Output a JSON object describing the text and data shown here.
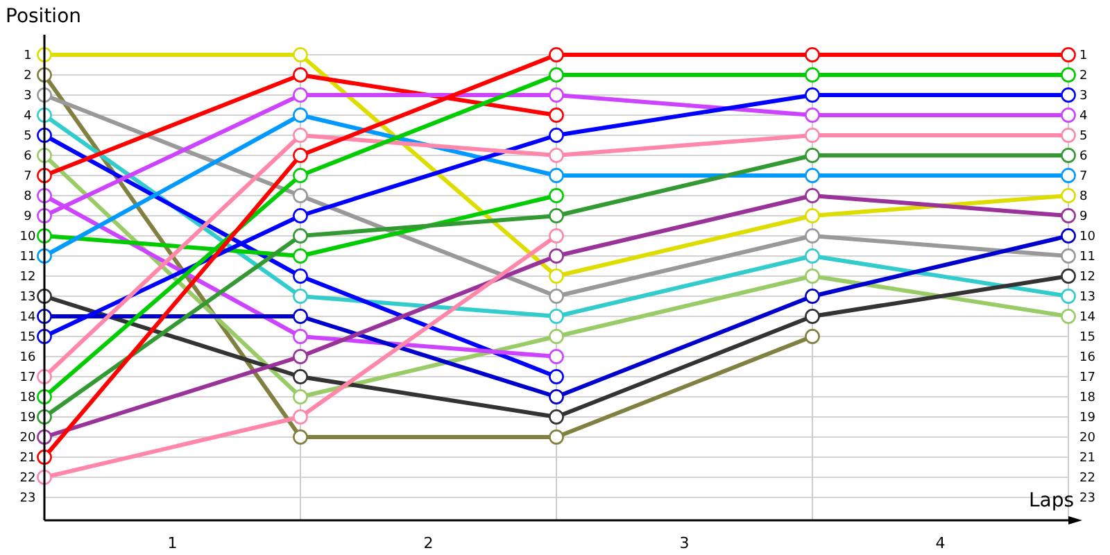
{
  "chart_data": {
    "type": "line",
    "xlabel": "Laps",
    "ylabel": "Position",
    "x": [
      0,
      1,
      2,
      3,
      4
    ],
    "xlim": [
      0,
      4
    ],
    "xticks": [
      {
        "value": 0.5,
        "label": "1"
      },
      {
        "value": 1.5,
        "label": "2"
      },
      {
        "value": 2.5,
        "label": "3"
      },
      {
        "value": 3.5,
        "label": "4"
      }
    ],
    "ylim": [
      24,
      0
    ],
    "yticks": [
      1,
      2,
      3,
      4,
      5,
      6,
      7,
      8,
      9,
      10,
      11,
      12,
      13,
      14,
      15,
      16,
      17,
      18,
      19,
      20,
      21,
      22,
      23
    ],
    "y2lim": [
      24,
      0
    ],
    "y2ticks": [
      1,
      2,
      3,
      4,
      5,
      6,
      7,
      8,
      9,
      10,
      11,
      12,
      13,
      14,
      15,
      16,
      17,
      18,
      19,
      20,
      21,
      22,
      23
    ],
    "grid": "y",
    "marker": "circle",
    "line_style": "solid",
    "ref_lines": [
      {
        "axis": "x",
        "value": 1,
        "color": "#cccccc"
      },
      {
        "axis": "x",
        "value": 2,
        "color": "#cccccc"
      },
      {
        "axis": "x",
        "value": 3,
        "color": "#cccccc"
      },
      {
        "axis": "x",
        "value": 4,
        "color": "#cccccc"
      }
    ],
    "series": [
      {
        "color": "#dddd00",
        "values": [
          1,
          1,
          12,
          9,
          8
        ]
      },
      {
        "color": "#808040",
        "values": [
          2,
          20,
          20,
          15,
          null
        ]
      },
      {
        "color": "#999999",
        "values": [
          3,
          8,
          13,
          10,
          11
        ]
      },
      {
        "color": "#33cccc",
        "values": [
          4,
          13,
          14,
          11,
          13
        ]
      },
      {
        "color": "#0000ff",
        "values": [
          5,
          12,
          17,
          null,
          null
        ]
      },
      {
        "color": "#99cc66",
        "values": [
          6,
          18,
          15,
          12,
          14
        ]
      },
      {
        "color": "#ff0000",
        "values": [
          7,
          2,
          4,
          null,
          null
        ]
      },
      {
        "color": "#cc44ff",
        "values": [
          8,
          15,
          16,
          null,
          null
        ]
      },
      {
        "color": "#cc44ff",
        "values": [
          9,
          3,
          3,
          4,
          4
        ]
      },
      {
        "color": "#00cc00",
        "values": [
          10,
          11,
          8,
          null,
          null
        ]
      },
      {
        "color": "#0099ff",
        "values": [
          11,
          4,
          7,
          7,
          7
        ]
      },
      {
        "color": "#333333",
        "values": [
          13,
          17,
          19,
          14,
          12
        ]
      },
      {
        "color": "#0000cc",
        "values": [
          14,
          14,
          18,
          13,
          10
        ]
      },
      {
        "color": "#0000ff",
        "values": [
          15,
          9,
          5,
          3,
          3
        ]
      },
      {
        "color": "#ff88aa",
        "values": [
          17,
          5,
          6,
          5,
          5
        ]
      },
      {
        "color": "#00cc00",
        "values": [
          18,
          7,
          2,
          2,
          2
        ]
      },
      {
        "color": "#339933",
        "values": [
          19,
          10,
          9,
          6,
          6
        ]
      },
      {
        "color": "#993399",
        "values": [
          20,
          16,
          11,
          8,
          9
        ]
      },
      {
        "color": "#ff0000",
        "values": [
          21,
          6,
          1,
          1,
          1
        ]
      },
      {
        "color": "#ff88aa",
        "values": [
          22,
          19,
          10,
          null,
          null
        ]
      }
    ]
  }
}
